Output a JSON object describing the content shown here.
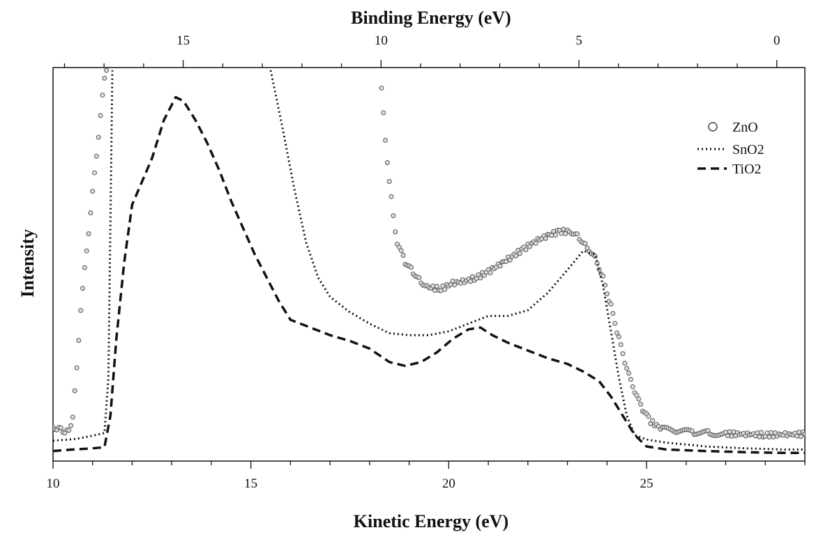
{
  "chart_data": {
    "type": "line",
    "xlabel": "Kinetic Energy (eV)",
    "x2label": "Binding Energy (eV)",
    "ylabel": "Intensity",
    "xlim": [
      10,
      29
    ],
    "ylim": [
      0,
      100
    ],
    "x_ticks": [
      10,
      15,
      20,
      25
    ],
    "x2_ticks": [
      15,
      10,
      5,
      0
    ],
    "x2_ticks_at_kinetic": [
      13.29,
      18.29,
      23.29,
      28.29
    ],
    "grid": false,
    "legend_position": "top-right",
    "legend": [
      "ZnO",
      "SnO2",
      "TiO2"
    ],
    "series": [
      {
        "name": "ZnO",
        "style": "circle-markers",
        "color": "#555555",
        "points": [
          [
            10.0,
            7.5
          ],
          [
            10.1,
            6.0
          ],
          [
            10.2,
            7.0
          ],
          [
            10.3,
            5.5
          ],
          [
            10.4,
            6.0
          ],
          [
            10.5,
            10.0
          ],
          [
            10.6,
            22.0
          ],
          [
            10.7,
            38.0
          ],
          [
            10.8,
            48.0
          ],
          [
            10.9,
            58.0
          ],
          [
            11.0,
            68.0
          ],
          [
            11.1,
            78.0
          ],
          [
            11.2,
            88.0
          ],
          [
            11.3,
            98.0
          ],
          [
            11.35,
            100.0
          ],
          [
            18.3,
            95.0
          ],
          [
            18.4,
            82.0
          ],
          [
            18.5,
            71.0
          ],
          [
            18.6,
            62.0
          ],
          [
            18.7,
            55.0
          ],
          [
            18.9,
            50.0
          ],
          [
            19.1,
            47.5
          ],
          [
            19.3,
            45.0
          ],
          [
            19.5,
            43.5
          ],
          [
            19.8,
            43.0
          ],
          [
            20.1,
            44.5
          ],
          [
            20.4,
            45.0
          ],
          [
            20.7,
            46.0
          ],
          [
            21.0,
            47.5
          ],
          [
            21.3,
            49.5
          ],
          [
            21.6,
            51.5
          ],
          [
            21.9,
            53.5
          ],
          [
            22.2,
            55.5
          ],
          [
            22.5,
            57.0
          ],
          [
            22.8,
            58.0
          ],
          [
            23.1,
            58.0
          ],
          [
            23.3,
            56.5
          ],
          [
            23.5,
            54.0
          ],
          [
            23.7,
            51.5
          ],
          [
            23.9,
            46.0
          ],
          [
            24.1,
            38.5
          ],
          [
            24.3,
            30.0
          ],
          [
            24.5,
            22.0
          ],
          [
            24.7,
            16.0
          ],
          [
            24.9,
            11.5
          ],
          [
            25.1,
            8.5
          ],
          [
            25.4,
            6.5
          ],
          [
            25.8,
            5.9
          ],
          [
            26.2,
            5.7
          ],
          [
            26.6,
            5.5
          ],
          [
            27.0,
            5.3
          ],
          [
            27.5,
            5.2
          ],
          [
            28.0,
            5.0
          ],
          [
            28.5,
            5.1
          ],
          [
            29.0,
            5.2
          ]
        ]
      },
      {
        "name": "SnO2",
        "style": "dotted",
        "color": "#111111",
        "points": [
          [
            10.0,
            3.5
          ],
          [
            10.3,
            3.7
          ],
          [
            10.6,
            4.0
          ],
          [
            11.0,
            4.8
          ],
          [
            11.3,
            5.5
          ],
          [
            11.4,
            20.0
          ],
          [
            11.45,
            60.0
          ],
          [
            11.5,
            100.0
          ],
          [
            15.5,
            100.0
          ],
          [
            15.8,
            85.0
          ],
          [
            16.1,
            69.0
          ],
          [
            16.4,
            55.0
          ],
          [
            16.7,
            46.0
          ],
          [
            17.0,
            41.0
          ],
          [
            17.5,
            37.0
          ],
          [
            18.0,
            34.0
          ],
          [
            18.5,
            31.5
          ],
          [
            19.0,
            31.0
          ],
          [
            19.5,
            31.0
          ],
          [
            20.0,
            32.0
          ],
          [
            20.5,
            34.0
          ],
          [
            21.0,
            36.0
          ],
          [
            21.5,
            36.0
          ],
          [
            22.0,
            37.5
          ],
          [
            22.5,
            42.0
          ],
          [
            23.0,
            48.0
          ],
          [
            23.4,
            53.0
          ],
          [
            23.7,
            52.0
          ],
          [
            23.9,
            44.0
          ],
          [
            24.1,
            32.0
          ],
          [
            24.3,
            20.0
          ],
          [
            24.5,
            10.0
          ],
          [
            24.7,
            5.0
          ],
          [
            25.0,
            3.8
          ],
          [
            25.5,
            3.0
          ],
          [
            26.5,
            2.0
          ],
          [
            27.5,
            1.5
          ],
          [
            28.5,
            1.2
          ],
          [
            29.0,
            1.2
          ]
        ]
      },
      {
        "name": "TiO2",
        "style": "dashed",
        "color": "#111111",
        "points": [
          [
            10.0,
            0.8
          ],
          [
            10.5,
            1.2
          ],
          [
            11.0,
            1.5
          ],
          [
            11.3,
            1.8
          ],
          [
            11.45,
            10.0
          ],
          [
            11.6,
            30.0
          ],
          [
            11.8,
            50.0
          ],
          [
            12.0,
            65.0
          ],
          [
            12.5,
            77.0
          ],
          [
            12.8,
            87.0
          ],
          [
            13.1,
            93.0
          ],
          [
            13.3,
            92.0
          ],
          [
            13.6,
            87.0
          ],
          [
            13.9,
            81.0
          ],
          [
            14.2,
            74.0
          ],
          [
            14.5,
            66.0
          ],
          [
            14.8,
            59.0
          ],
          [
            15.1,
            52.0
          ],
          [
            15.4,
            46.0
          ],
          [
            15.7,
            40.0
          ],
          [
            16.0,
            35.0
          ],
          [
            16.5,
            33.0
          ],
          [
            17.0,
            31.0
          ],
          [
            17.5,
            29.5
          ],
          [
            18.0,
            27.5
          ],
          [
            18.5,
            24.0
          ],
          [
            18.9,
            23.0
          ],
          [
            19.3,
            24.0
          ],
          [
            19.7,
            26.5
          ],
          [
            20.1,
            30.0
          ],
          [
            20.5,
            32.5
          ],
          [
            20.8,
            33.0
          ],
          [
            21.1,
            31.0
          ],
          [
            21.5,
            29.0
          ],
          [
            22.0,
            27.0
          ],
          [
            22.5,
            25.0
          ],
          [
            23.0,
            23.5
          ],
          [
            23.4,
            21.5
          ],
          [
            23.8,
            19.0
          ],
          [
            24.1,
            15.0
          ],
          [
            24.4,
            10.0
          ],
          [
            24.7,
            5.0
          ],
          [
            25.0,
            2.0
          ],
          [
            25.5,
            1.2
          ],
          [
            26.5,
            0.8
          ],
          [
            27.5,
            0.5
          ],
          [
            28.5,
            0.3
          ],
          [
            29.0,
            0.3
          ]
        ]
      }
    ]
  }
}
